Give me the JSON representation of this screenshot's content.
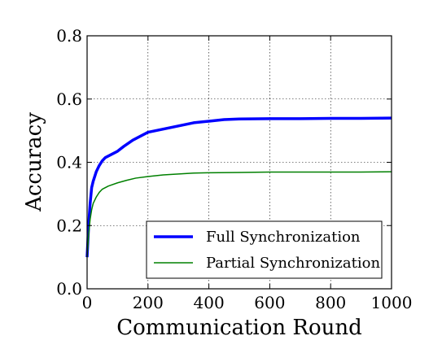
{
  "chart_data": {
    "type": "line",
    "xlabel": "Communication Round",
    "ylabel": "Accuracy",
    "xlim": [
      0,
      1000
    ],
    "ylim": [
      0,
      0.8
    ],
    "x_ticks": [
      0,
      200,
      400,
      600,
      800,
      1000
    ],
    "y_ticks": [
      0.0,
      0.2,
      0.4,
      0.6,
      0.8
    ],
    "x_tick_labels": [
      "0",
      "200",
      "400",
      "600",
      "800",
      "1000"
    ],
    "y_tick_labels": [
      "0.0",
      "0.2",
      "0.4",
      "0.6",
      "0.8"
    ],
    "grid": true,
    "legend_position": "lower-right",
    "series": [
      {
        "name": "Full Synchronization",
        "color": "#0000ff",
        "x": [
          0,
          5,
          10,
          15,
          20,
          30,
          40,
          50,
          60,
          80,
          100,
          120,
          150,
          180,
          200,
          250,
          300,
          350,
          400,
          450,
          500,
          600,
          700,
          800,
          900,
          1000
        ],
        "y": [
          0.1,
          0.2,
          0.27,
          0.32,
          0.34,
          0.37,
          0.39,
          0.405,
          0.415,
          0.425,
          0.435,
          0.45,
          0.47,
          0.485,
          0.495,
          0.505,
          0.515,
          0.525,
          0.53,
          0.535,
          0.537,
          0.538,
          0.538,
          0.539,
          0.539,
          0.54
        ]
      },
      {
        "name": "Partial Synchronization",
        "color": "#008000",
        "x": [
          0,
          5,
          10,
          15,
          20,
          30,
          40,
          50,
          70,
          100,
          130,
          160,
          200,
          250,
          300,
          350,
          400,
          500,
          600,
          700,
          800,
          900,
          1000
        ],
        "y": [
          0.1,
          0.17,
          0.22,
          0.25,
          0.27,
          0.29,
          0.305,
          0.315,
          0.325,
          0.335,
          0.343,
          0.35,
          0.355,
          0.36,
          0.363,
          0.366,
          0.367,
          0.368,
          0.369,
          0.369,
          0.369,
          0.369,
          0.37
        ]
      }
    ]
  }
}
